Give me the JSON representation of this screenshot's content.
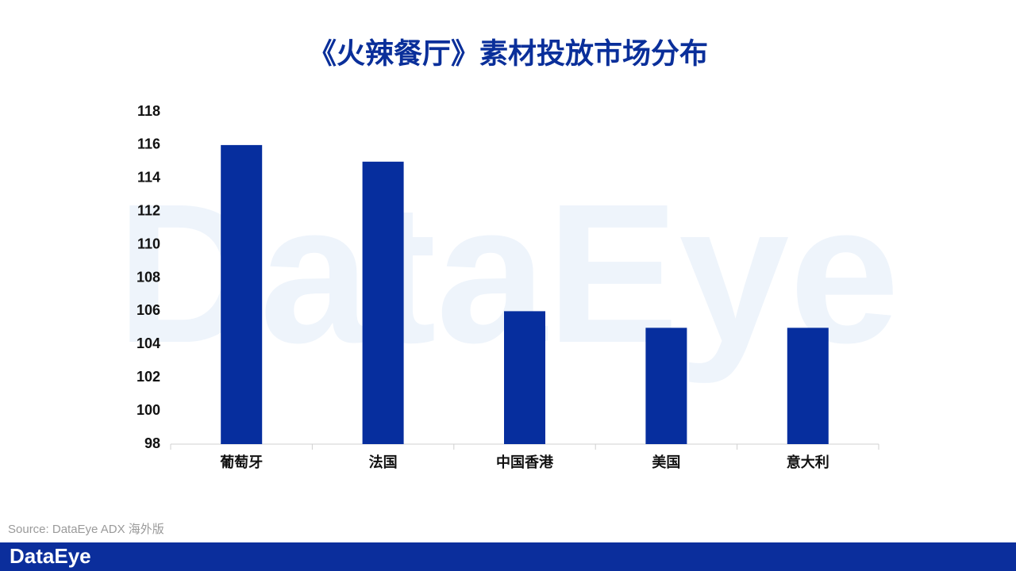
{
  "chart_data": {
    "type": "bar",
    "title": "《火辣餐厅》素材投放市场分布",
    "categories": [
      "葡萄牙",
      "法国",
      "中国香港",
      "美国",
      "意大利"
    ],
    "values": [
      116,
      115,
      106,
      105,
      105
    ],
    "color": "#062e9e",
    "ylim": [
      98,
      118
    ],
    "yticks": [
      98,
      100,
      102,
      104,
      106,
      108,
      110,
      112,
      114,
      116,
      118
    ],
    "grid": false,
    "source": "Source: DataEye ADX 海外版",
    "brand": "DataEye"
  }
}
